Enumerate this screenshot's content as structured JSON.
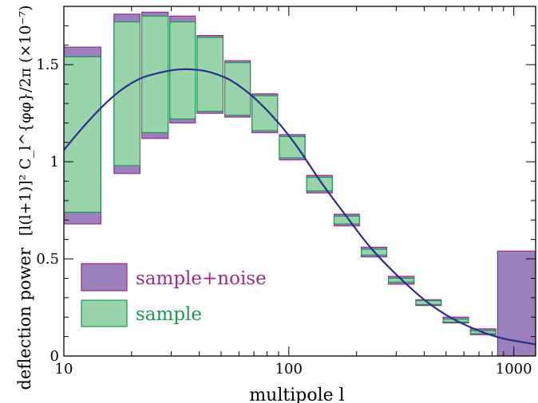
{
  "chart_data": {
    "type": "bar",
    "xlabel": "multipole l",
    "ylabel_main": "deflection power",
    "ylabel_formula": "[l(l+1)]² C_l^{φφ}/2π  (×10⁻⁷)",
    "x_scale": "log",
    "xlim": [
      10,
      1250
    ],
    "ylim": [
      0,
      1.8
    ],
    "x_ticks": [
      10,
      100,
      1000
    ],
    "x_tick_labels": [
      "10",
      "100",
      "1000"
    ],
    "y_ticks": [
      0,
      0.5,
      1,
      1.5
    ],
    "y_tick_labels": [
      "0",
      "0.5",
      "1",
      "1.5"
    ],
    "grid": false,
    "legend_position": "lower-left",
    "colors": {
      "sample_noise_fill": "#9b80bd",
      "sample_noise_edge": "#9a2c8e",
      "sample_noise_text": "#9a2c8e",
      "sample_fill": "#99d3a9",
      "sample_edge": "#1a9a52",
      "sample_text": "#1a9a52",
      "curve": "#2a2f8f"
    },
    "series": [
      {
        "name": "sample+noise",
        "bins": [
          {
            "x_low": 10,
            "x_high": 14.6,
            "y_low": 0.68,
            "y_high": 1.59
          },
          {
            "x_low": 16.7,
            "x_high": 21.8,
            "y_low": 0.94,
            "y_high": 1.76
          },
          {
            "x_low": 22.2,
            "x_high": 29.1,
            "y_low": 1.12,
            "y_high": 1.77
          },
          {
            "x_low": 29.6,
            "x_high": 38.4,
            "y_low": 1.2,
            "y_high": 1.75
          },
          {
            "x_low": 39.1,
            "x_high": 51.0,
            "y_low": 1.25,
            "y_high": 1.65
          },
          {
            "x_low": 51.9,
            "x_high": 67.4,
            "y_low": 1.23,
            "y_high": 1.52
          },
          {
            "x_low": 68.6,
            "x_high": 89.2,
            "y_low": 1.15,
            "y_high": 1.35
          },
          {
            "x_low": 90.8,
            "x_high": 118,
            "y_low": 1.01,
            "y_high": 1.14
          },
          {
            "x_low": 120,
            "x_high": 156,
            "y_low": 0.84,
            "y_high": 0.93
          },
          {
            "x_low": 159,
            "x_high": 206,
            "y_low": 0.67,
            "y_high": 0.73
          },
          {
            "x_low": 210,
            "x_high": 272,
            "y_low": 0.51,
            "y_high": 0.56
          },
          {
            "x_low": 277,
            "x_high": 360,
            "y_low": 0.37,
            "y_high": 0.41
          },
          {
            "x_low": 367,
            "x_high": 476,
            "y_low": 0.26,
            "y_high": 0.29
          },
          {
            "x_low": 485,
            "x_high": 629,
            "y_low": 0.17,
            "y_high": 0.2
          },
          {
            "x_low": 641,
            "x_high": 832,
            "y_low": 0.11,
            "y_high": 0.14
          },
          {
            "x_low": 847,
            "x_high": 1250,
            "y_low": 0.0,
            "y_high": 0.54
          }
        ]
      },
      {
        "name": "sample",
        "bins": [
          {
            "x_low": 10,
            "x_high": 14.6,
            "y_low": 0.74,
            "y_high": 1.54
          },
          {
            "x_low": 16.7,
            "x_high": 21.8,
            "y_low": 0.98,
            "y_high": 1.72
          },
          {
            "x_low": 22.2,
            "x_high": 29.1,
            "y_low": 1.15,
            "y_high": 1.75
          },
          {
            "x_low": 29.6,
            "x_high": 38.4,
            "y_low": 1.22,
            "y_high": 1.72
          },
          {
            "x_low": 39.1,
            "x_high": 51.0,
            "y_low": 1.26,
            "y_high": 1.64
          },
          {
            "x_low": 51.9,
            "x_high": 67.4,
            "y_low": 1.24,
            "y_high": 1.51
          },
          {
            "x_low": 68.6,
            "x_high": 89.2,
            "y_low": 1.16,
            "y_high": 1.34
          },
          {
            "x_low": 90.8,
            "x_high": 118,
            "y_low": 1.02,
            "y_high": 1.13
          },
          {
            "x_low": 120,
            "x_high": 156,
            "y_low": 0.85,
            "y_high": 0.92
          },
          {
            "x_low": 159,
            "x_high": 206,
            "y_low": 0.68,
            "y_high": 0.72
          },
          {
            "x_low": 210,
            "x_high": 272,
            "y_low": 0.52,
            "y_high": 0.55
          },
          {
            "x_low": 277,
            "x_high": 360,
            "y_low": 0.38,
            "y_high": 0.4
          },
          {
            "x_low": 367,
            "x_high": 476,
            "y_low": 0.265,
            "y_high": 0.285
          },
          {
            "x_low": 485,
            "x_high": 629,
            "y_low": 0.175,
            "y_high": 0.19
          },
          {
            "x_low": 641,
            "x_high": 832,
            "y_low": 0.115,
            "y_high": 0.13
          }
        ]
      }
    ],
    "theory_curve": {
      "x": [
        10,
        12,
        15,
        18,
        22,
        27,
        32,
        38,
        45,
        55,
        70,
        90,
        110,
        140,
        180,
        230,
        300,
        400,
        520,
        700,
        900,
        1250
      ],
      "y": [
        1.06,
        1.17,
        1.29,
        1.37,
        1.43,
        1.46,
        1.475,
        1.475,
        1.46,
        1.42,
        1.33,
        1.2,
        1.07,
        0.89,
        0.72,
        0.56,
        0.42,
        0.29,
        0.2,
        0.13,
        0.09,
        0.06
      ]
    }
  }
}
